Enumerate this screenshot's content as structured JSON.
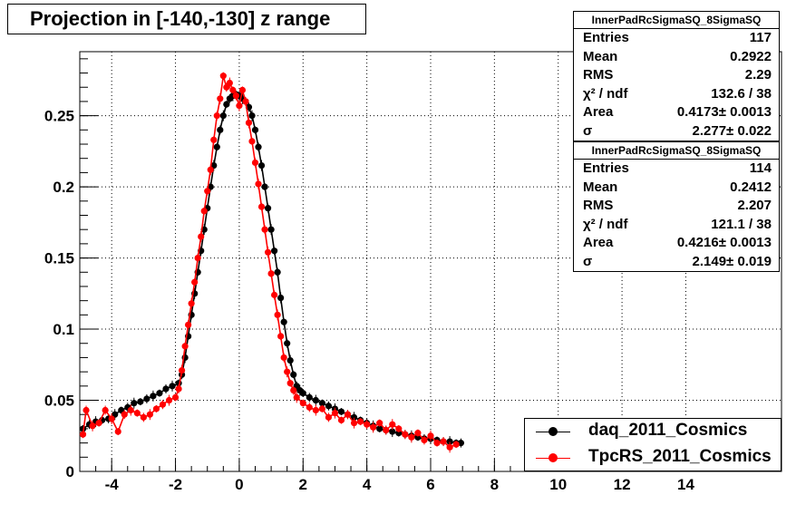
{
  "chart_data": {
    "type": "scatter",
    "title": "Projection in [-140,-130] z range",
    "xlim": [
      -5,
      17
    ],
    "ylim": [
      0,
      0.295
    ],
    "x_ticks": [
      -4,
      -2,
      0,
      2,
      4,
      6,
      8,
      10,
      12,
      14
    ],
    "y_ticks": [
      0,
      0.05,
      0.1,
      0.15,
      0.2,
      0.25
    ],
    "x_tick_labels": [
      "-4",
      "-2",
      "0",
      "2",
      "4",
      "6",
      "8",
      "10",
      "12",
      "14"
    ],
    "y_tick_labels": [
      "0",
      "0.05",
      "0.1",
      "0.15",
      "0.2",
      "0.25"
    ],
    "grid": true,
    "legend_position": "bottom-right",
    "series": [
      {
        "name": "daq_2011_Cosmics",
        "color": "#000000",
        "x": [
          -4.9,
          -4.7,
          -4.5,
          -4.3,
          -4.1,
          -3.9,
          -3.7,
          -3.5,
          -3.3,
          -3.1,
          -2.9,
          -2.7,
          -2.5,
          -2.3,
          -2.1,
          -1.9,
          -1.8,
          -1.7,
          -1.6,
          -1.5,
          -1.4,
          -1.3,
          -1.2,
          -1.1,
          -1.0,
          -0.9,
          -0.8,
          -0.7,
          -0.6,
          -0.5,
          -0.4,
          -0.3,
          -0.2,
          -0.1,
          0.0,
          0.1,
          0.2,
          0.3,
          0.4,
          0.5,
          0.6,
          0.7,
          0.8,
          0.9,
          1.0,
          1.1,
          1.2,
          1.3,
          1.4,
          1.5,
          1.6,
          1.7,
          1.8,
          1.9,
          2.0,
          2.2,
          2.4,
          2.6,
          2.8,
          3.0,
          3.2,
          3.4,
          3.6,
          3.8,
          4.0,
          4.2,
          4.4,
          4.6,
          4.8,
          5.0,
          5.2,
          5.4,
          5.6,
          5.8,
          6.0,
          6.2,
          6.4,
          6.6,
          6.8,
          6.95
        ],
        "y": [
          0.03,
          0.033,
          0.035,
          0.036,
          0.037,
          0.04,
          0.043,
          0.045,
          0.048,
          0.049,
          0.051,
          0.053,
          0.055,
          0.058,
          0.06,
          0.062,
          0.068,
          0.08,
          0.095,
          0.11,
          0.125,
          0.14,
          0.155,
          0.17,
          0.185,
          0.2,
          0.215,
          0.228,
          0.24,
          0.25,
          0.258,
          0.262,
          0.264,
          0.265,
          0.264,
          0.262,
          0.26,
          0.256,
          0.25,
          0.24,
          0.228,
          0.215,
          0.2,
          0.185,
          0.17,
          0.155,
          0.14,
          0.122,
          0.105,
          0.09,
          0.078,
          0.068,
          0.06,
          0.057,
          0.055,
          0.052,
          0.05,
          0.048,
          0.046,
          0.044,
          0.042,
          0.04,
          0.038,
          0.036,
          0.034,
          0.032,
          0.03,
          0.029,
          0.028,
          0.027,
          0.026,
          0.025,
          0.024,
          0.023,
          0.023,
          0.022,
          0.021,
          0.021,
          0.02,
          0.02
        ],
        "entries": "117",
        "mean": "0.2922",
        "rms": "2.29",
        "chi2_ndf": "132.6 / 38",
        "area": "0.4173± 0.0013",
        "sigma": "2.277± 0.022"
      },
      {
        "name": "TpcRS_2011_Cosmics",
        "color": "#ff0000",
        "x": [
          -4.9,
          -4.8,
          -4.6,
          -4.4,
          -4.2,
          -4.0,
          -3.8,
          -3.6,
          -3.4,
          -3.2,
          -3.0,
          -2.8,
          -2.6,
          -2.4,
          -2.2,
          -2.0,
          -1.9,
          -1.8,
          -1.7,
          -1.6,
          -1.5,
          -1.4,
          -1.3,
          -1.2,
          -1.1,
          -1.0,
          -0.9,
          -0.8,
          -0.7,
          -0.6,
          -0.5,
          -0.4,
          -0.3,
          -0.2,
          -0.1,
          0.0,
          0.1,
          0.2,
          0.3,
          0.4,
          0.5,
          0.6,
          0.7,
          0.8,
          0.9,
          1.0,
          1.1,
          1.2,
          1.3,
          1.4,
          1.5,
          1.6,
          1.7,
          1.8,
          2.0,
          2.2,
          2.4,
          2.6,
          2.8,
          3.0,
          3.2,
          3.4,
          3.6,
          3.8,
          4.0,
          4.2,
          4.4,
          4.6,
          4.8,
          5.0,
          5.2,
          5.4,
          5.6,
          5.8,
          6.0,
          6.2,
          6.4,
          6.6,
          6.8
        ],
        "y": [
          0.026,
          0.043,
          0.032,
          0.034,
          0.043,
          0.037,
          0.028,
          0.04,
          0.043,
          0.041,
          0.038,
          0.04,
          0.044,
          0.047,
          0.05,
          0.052,
          0.058,
          0.071,
          0.088,
          0.103,
          0.118,
          0.133,
          0.15,
          0.165,
          0.183,
          0.197,
          0.212,
          0.233,
          0.25,
          0.262,
          0.278,
          0.27,
          0.273,
          0.268,
          0.264,
          0.257,
          0.268,
          0.26,
          0.245,
          0.232,
          0.217,
          0.202,
          0.186,
          0.17,
          0.154,
          0.139,
          0.124,
          0.11,
          0.095,
          0.08,
          0.07,
          0.062,
          0.057,
          0.052,
          0.048,
          0.045,
          0.043,
          0.044,
          0.038,
          0.041,
          0.036,
          0.04,
          0.034,
          0.035,
          0.033,
          0.031,
          0.034,
          0.029,
          0.033,
          0.03,
          0.026,
          0.024,
          0.027,
          0.022,
          0.025,
          0.02,
          0.021,
          0.017,
          0.019
        ],
        "entries": "114",
        "mean": "0.2412",
        "rms": "2.207",
        "chi2_ndf": "121.1 / 38",
        "area": "0.4216± 0.0013",
        "sigma": "2.149± 0.019"
      }
    ]
  },
  "stats_boxes": [
    {
      "header": "InnerPadRcSigmaSQ_8SigmaSQ",
      "labels": {
        "entries": "Entries",
        "mean": "Mean",
        "rms": "RMS",
        "chi2": "χ² / ndf",
        "area": "Area",
        "sigma": "σ"
      }
    },
    {
      "header": "InnerPadRcSigmaSQ_8SigmaSQ",
      "labels": {
        "entries": "Entries",
        "mean": "Mean",
        "rms": "RMS",
        "chi2": "χ² / ndf",
        "area": "Area",
        "sigma": "σ"
      }
    }
  ]
}
